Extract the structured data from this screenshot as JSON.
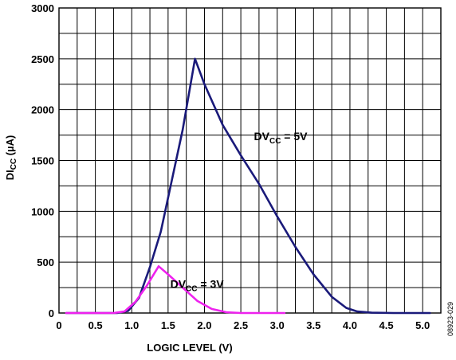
{
  "figure_id": "08923-029",
  "chart_data": {
    "type": "line",
    "xlabel": "LOGIC LEVEL (V)",
    "ylabel": {
      "main": "DI",
      "sub": "CC",
      "unit": " (µA)"
    },
    "xlim": [
      0,
      5.25
    ],
    "ylim": [
      0,
      3000
    ],
    "xticks": [
      "0",
      "0.5",
      "1.0",
      "1.5",
      "2.0",
      "2.5",
      "3.0",
      "3.5",
      "4.0",
      "4.5",
      "5.0"
    ],
    "yticks": [
      "0",
      "500",
      "1000",
      "1500",
      "2000",
      "2500",
      "3000"
    ],
    "grid": true,
    "series": [
      {
        "label": {
          "main": "DV",
          "sub": "CC",
          "rest": " = 5V"
        },
        "color": "#1a1a7a",
        "x": [
          0.1,
          0.8,
          0.95,
          1.1,
          1.25,
          1.4,
          1.55,
          1.7,
          1.87,
          2.0,
          2.25,
          2.5,
          2.75,
          3.0,
          3.25,
          3.5,
          3.75,
          3.95,
          4.1,
          4.3,
          4.6,
          5.1
        ],
        "y": [
          0,
          0,
          20,
          150,
          450,
          800,
          1300,
          1800,
          2500,
          2250,
          1850,
          1550,
          1270,
          950,
          650,
          380,
          160,
          50,
          15,
          3,
          0,
          0
        ]
      },
      {
        "label": {
          "main": "DV",
          "sub": "CC",
          "rest": " = 3V"
        },
        "color": "#ee22ee",
        "x": [
          0.1,
          0.75,
          0.9,
          1.05,
          1.2,
          1.37,
          1.5,
          1.7,
          1.9,
          2.1,
          2.3,
          2.5,
          3.1
        ],
        "y": [
          0,
          0,
          15,
          110,
          260,
          460,
          380,
          250,
          120,
          40,
          8,
          0,
          0
        ]
      }
    ]
  }
}
